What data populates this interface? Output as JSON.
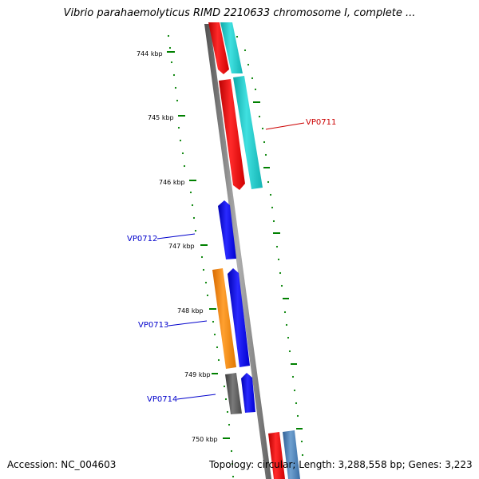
{
  "title": "Vibrio parahaemolyticus RIMD 2210633 chromosome I, complete ...",
  "accession": "Accession: NC_004603",
  "topology": "Topology: circular; Length: 3,288,558 bp; Genes: 3,223",
  "ticks": [
    "744 kbp",
    "745 kbp",
    "746 kbp",
    "747 kbp",
    "748 kbp",
    "749 kbp",
    "750 kbp"
  ],
  "gene_labels": {
    "vp0711": "VP0711",
    "vp0712": "VP0712",
    "vp0713": "VP0713",
    "vp0714": "VP0714"
  },
  "colors": {
    "red": "#ff0000",
    "cyan": "#1fc8c8",
    "blue": "#0000ff",
    "orange": "#ff8c00",
    "gray": "#5a5a5a",
    "steelblue": "#4a7fb5",
    "tick_green": "#008000",
    "label_red": "#cc0000",
    "label_blue": "#0000cc"
  }
}
